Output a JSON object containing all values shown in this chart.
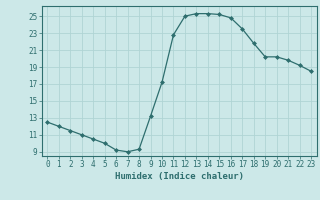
{
  "x": [
    0,
    1,
    2,
    3,
    4,
    5,
    6,
    7,
    8,
    9,
    10,
    11,
    12,
    13,
    14,
    15,
    16,
    17,
    18,
    19,
    20,
    21,
    22,
    23
  ],
  "y": [
    12.5,
    12.0,
    11.5,
    11.0,
    10.5,
    10.0,
    9.2,
    9.0,
    9.3,
    13.2,
    17.2,
    22.8,
    25.0,
    25.3,
    25.3,
    25.2,
    24.8,
    23.5,
    21.8,
    20.2,
    20.2,
    19.8,
    19.2,
    18.5
  ],
  "line_color": "#2e6e6e",
  "marker": "D",
  "marker_size": 2,
  "bg_color": "#cce8e8",
  "grid_color": "#b0d4d4",
  "xlabel": "Humidex (Indice chaleur)",
  "xlim": [
    -0.5,
    23.5
  ],
  "ylim": [
    8.5,
    26.2
  ],
  "yticks": [
    9,
    11,
    13,
    15,
    17,
    19,
    21,
    23,
    25
  ],
  "xticks": [
    0,
    1,
    2,
    3,
    4,
    5,
    6,
    7,
    8,
    9,
    10,
    11,
    12,
    13,
    14,
    15,
    16,
    17,
    18,
    19,
    20,
    21,
    22,
    23
  ],
  "tick_fontsize": 5.5,
  "label_fontsize": 6.5
}
